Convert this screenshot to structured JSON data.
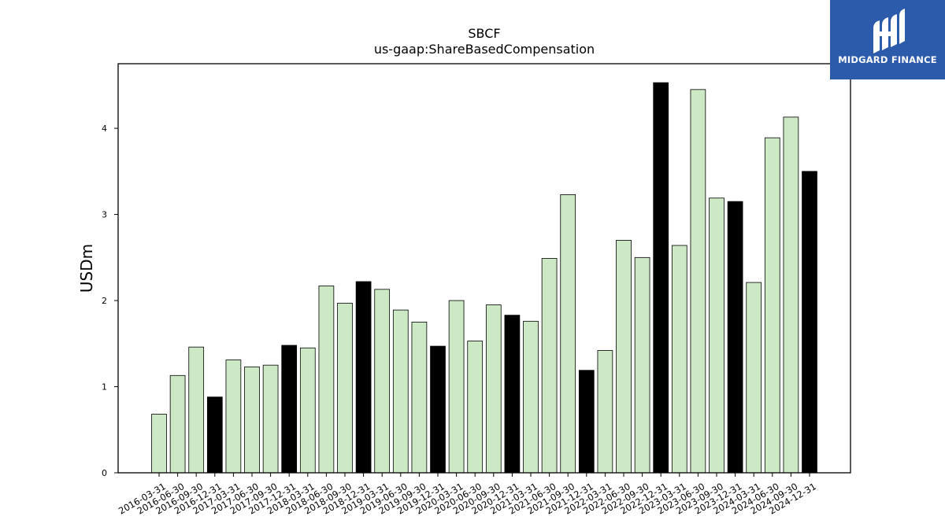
{
  "brand": {
    "name": "MIDGARD FINANCE",
    "logo_icon": "midgard-logo-icon",
    "background_color": "#2d5bab"
  },
  "chart_data": {
    "type": "bar",
    "title": "SBCF",
    "subtitle": "us-gaap:ShareBasedCompensation",
    "xlabel": "",
    "ylabel": "USDm",
    "ylim": [
      0,
      4.75
    ],
    "yticks": [
      0,
      1,
      2,
      3,
      4
    ],
    "grid": false,
    "legend": "none",
    "colors": {
      "quarter": "#cde8c5",
      "fiscal_year_end": "#000000",
      "edge": "#000000"
    },
    "categories": [
      "2016-03-31",
      "2016-06-30",
      "2016-09-30",
      "2016-12-31",
      "2017-03-31",
      "2017-06-30",
      "2017-09-30",
      "2017-12-31",
      "2018-03-31",
      "2018-06-30",
      "2018-09-30",
      "2018-12-31",
      "2019-03-31",
      "2019-06-30",
      "2019-09-30",
      "2019-12-31",
      "2020-03-31",
      "2020-06-30",
      "2020-09-30",
      "2020-12-31",
      "2021-03-31",
      "2021-06-30",
      "2021-09-30",
      "2021-12-31",
      "2022-03-31",
      "2022-06-30",
      "2022-09-30",
      "2022-12-31",
      "2023-03-31",
      "2023-06-30",
      "2023-09-30",
      "2023-12-31",
      "2024-03-31",
      "2024-06-30",
      "2024-09-30",
      "2024-12-31"
    ],
    "values": [
      0.68,
      1.13,
      1.46,
      0.88,
      1.31,
      1.23,
      1.25,
      1.48,
      1.45,
      2.17,
      1.97,
      2.22,
      2.13,
      1.89,
      1.75,
      1.47,
      2.0,
      1.53,
      1.95,
      1.83,
      1.76,
      2.49,
      3.23,
      1.19,
      1.42,
      2.7,
      2.5,
      4.53,
      2.64,
      4.45,
      3.19,
      3.15,
      2.21,
      3.89,
      4.13,
      3.5
    ],
    "highlight": [
      false,
      false,
      false,
      true,
      false,
      false,
      false,
      true,
      false,
      false,
      false,
      true,
      false,
      false,
      false,
      true,
      false,
      false,
      false,
      true,
      false,
      false,
      false,
      true,
      false,
      false,
      false,
      true,
      false,
      false,
      false,
      true,
      false,
      false,
      false,
      true
    ]
  }
}
